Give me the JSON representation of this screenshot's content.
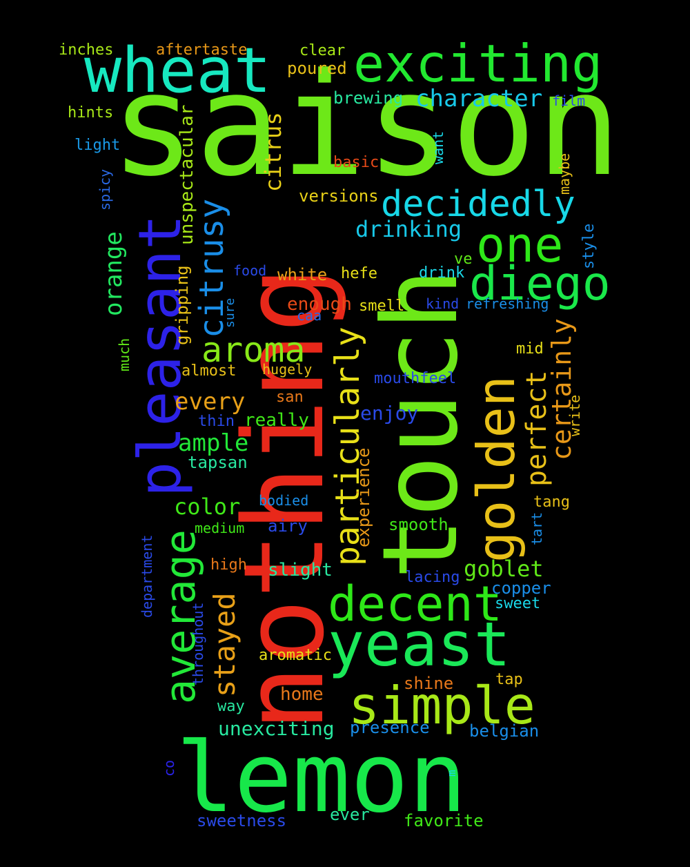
{
  "background": "#000000",
  "words": [
    {
      "text": "saison",
      "color": "#6de818"
    },
    {
      "text": "nothing",
      "color": "#e8281a"
    },
    {
      "text": "touch",
      "color": "#6de818"
    },
    {
      "text": "lemon",
      "color": "#17e84a"
    },
    {
      "text": "wheat",
      "color": "#17e8c0"
    },
    {
      "text": "exciting",
      "color": "#22e830"
    },
    {
      "text": "pleasant",
      "color": "#2d22e8"
    },
    {
      "text": "golden",
      "color": "#e8c018"
    },
    {
      "text": "yeast",
      "color": "#1ae858"
    },
    {
      "text": "simple",
      "color": "#a8e818"
    },
    {
      "text": "decent",
      "color": "#2ee818"
    },
    {
      "text": "one",
      "color": "#2ee818"
    },
    {
      "text": "diego",
      "color": "#1ae84a"
    },
    {
      "text": "decidedly",
      "color": "#18d8e8"
    },
    {
      "text": "average",
      "color": "#22e838"
    },
    {
      "text": "particularly",
      "color": "#e8e018"
    },
    {
      "text": "aroma",
      "color": "#88e818"
    },
    {
      "text": "citrusy",
      "color": "#1a8ee8"
    },
    {
      "text": "stayed",
      "color": "#e8a018"
    },
    {
      "text": "perfect",
      "color": "#e8c018"
    },
    {
      "text": "certainly",
      "color": "#e89818"
    },
    {
      "text": "orange",
      "color": "#22e860"
    },
    {
      "text": "citrus",
      "color": "#e8d018"
    },
    {
      "text": "unspectacular",
      "color": "#a8e818"
    },
    {
      "text": "goblet",
      "color": "#60e818"
    },
    {
      "text": "character",
      "color": "#18c8e8"
    },
    {
      "text": "every",
      "color": "#e8a018"
    },
    {
      "text": "ample",
      "color": "#22e838"
    },
    {
      "text": "color",
      "color": "#40e818"
    },
    {
      "text": "drinking",
      "color": "#18c8e8"
    },
    {
      "text": "experience",
      "color": "#e89818"
    },
    {
      "text": "gripping",
      "color": "#e8c018"
    },
    {
      "text": "enough",
      "color": "#e84a18"
    },
    {
      "text": "enjoy",
      "color": "#2a4ae8"
    },
    {
      "text": "unexciting",
      "color": "#28e8a0"
    },
    {
      "text": "stayed",
      "color": "#e8a018"
    },
    {
      "text": "aftertaste",
      "color": "#e89818"
    },
    {
      "text": "poured",
      "color": "#e8c018"
    },
    {
      "text": "clear",
      "color": "#a8e818"
    },
    {
      "text": "brewing",
      "color": "#28e8a0"
    },
    {
      "text": "inches",
      "color": "#a8e818"
    },
    {
      "text": "hints",
      "color": "#a8e818"
    },
    {
      "text": "light",
      "color": "#1a9ae8"
    },
    {
      "text": "film",
      "color": "#2a4ae8"
    },
    {
      "text": "basic",
      "color": "#e84a18"
    },
    {
      "text": "want",
      "color": "#1ad8e8"
    },
    {
      "text": "maybe",
      "color": "#e8c018"
    },
    {
      "text": "spicy",
      "color": "#2a6ae8"
    },
    {
      "text": "versions",
      "color": "#e8d018"
    },
    {
      "text": "style",
      "color": "#1a8ee8"
    },
    {
      "text": "ve",
      "color": "#60e818"
    },
    {
      "text": "food",
      "color": "#2a4ae8"
    },
    {
      "text": "white",
      "color": "#e8a018"
    },
    {
      "text": "hefe",
      "color": "#e8e018"
    },
    {
      "text": "drink",
      "color": "#1ad8e8"
    },
    {
      "text": "kind",
      "color": "#2a4ae8"
    },
    {
      "text": "refreshing",
      "color": "#1a8ee8"
    },
    {
      "text": "sure",
      "color": "#1a8ee8"
    },
    {
      "text": "caa",
      "color": "#2a6ae8"
    },
    {
      "text": "smell",
      "color": "#e8e018"
    },
    {
      "text": "much",
      "color": "#60e818"
    },
    {
      "text": "almost",
      "color": "#e8c018"
    },
    {
      "text": "hugely",
      "color": "#e8c018"
    },
    {
      "text": "mid",
      "color": "#e8e018"
    },
    {
      "text": "mouthfeel",
      "color": "#2a4ae8"
    },
    {
      "text": "san",
      "color": "#e8781a"
    },
    {
      "text": "thin",
      "color": "#2a4ae8"
    },
    {
      "text": "really",
      "color": "#40e818"
    },
    {
      "text": "write",
      "color": "#e8c018"
    },
    {
      "text": "tapsan",
      "color": "#28e8a0"
    },
    {
      "text": "bodied",
      "color": "#1a8ee8"
    },
    {
      "text": "tang",
      "color": "#e8c018"
    },
    {
      "text": "department",
      "color": "#2a4ae8"
    },
    {
      "text": "medium",
      "color": "#40e818"
    },
    {
      "text": "airy",
      "color": "#2a4ae8"
    },
    {
      "text": "smooth",
      "color": "#40e818"
    },
    {
      "text": "tart",
      "color": "#1a8ee8"
    },
    {
      "text": "high",
      "color": "#e8781a"
    },
    {
      "text": "slight",
      "color": "#28e8a0"
    },
    {
      "text": "lacing",
      "color": "#2a4ae8"
    },
    {
      "text": "copper",
      "color": "#1a8ee8"
    },
    {
      "text": "throughout",
      "color": "#2a4ae8"
    },
    {
      "text": "sweet",
      "color": "#1ad8e8"
    },
    {
      "text": "aromatic",
      "color": "#e8e018"
    },
    {
      "text": "shine",
      "color": "#e8781a"
    },
    {
      "text": "tap",
      "color": "#e8c018"
    },
    {
      "text": "home",
      "color": "#e8781a"
    },
    {
      "text": "way",
      "color": "#28e8a0"
    },
    {
      "text": "presence",
      "color": "#1a8ee8"
    },
    {
      "text": "belgian",
      "color": "#1a8ee8"
    },
    {
      "text": "co",
      "color": "#2a22e8"
    },
    {
      "text": "m",
      "color": "#1ad8e8"
    },
    {
      "text": "sweetness",
      "color": "#2a4ae8"
    },
    {
      "text": "ever",
      "color": "#28e8a0"
    },
    {
      "text": "favorite",
      "color": "#40e818"
    }
  ]
}
